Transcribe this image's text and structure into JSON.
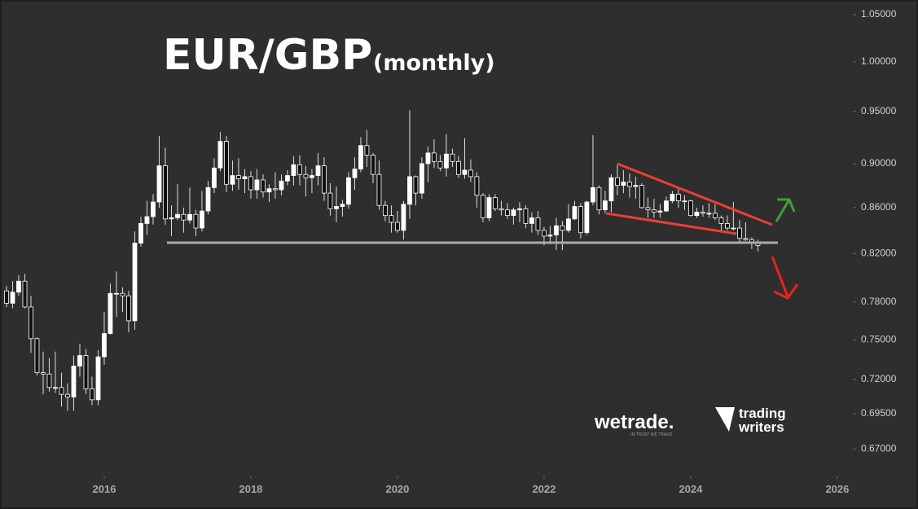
{
  "chart_data": {
    "type": "candlestick",
    "title": "EUR/GBP",
    "subtitle": "(monthly)",
    "log_scale": true,
    "up_color": "#ffffff",
    "down_color": "#111111",
    "xlim": [
      2014.578,
      2026.19
    ],
    "xticks": [
      2016,
      2018,
      2020,
      2022,
      2024,
      2026
    ],
    "ylim": [
      0.654,
      1.066
    ],
    "yticks": [
      {
        "value": 1.05,
        "label": "1.05000"
      },
      {
        "value": 1.0,
        "label": "1.00000"
      },
      {
        "value": 0.95,
        "label": "0.95000"
      },
      {
        "value": 0.9,
        "label": "0.90000"
      },
      {
        "value": 0.86,
        "label": "0.86000"
      },
      {
        "value": 0.82,
        "label": "0.82000"
      },
      {
        "value": 0.78,
        "label": "0.78000"
      },
      {
        "value": 0.75,
        "label": "0.75000"
      },
      {
        "value": 0.72,
        "label": "0.72000"
      },
      {
        "value": 0.695,
        "label": "0.69500"
      },
      {
        "value": 0.67,
        "label": "0.67000"
      }
    ],
    "x": [
      2014.667,
      2014.75,
      2014.833,
      2014.917,
      2015,
      2015.083,
      2015.167,
      2015.25,
      2015.333,
      2015.417,
      2015.5,
      2015.583,
      2015.667,
      2015.75,
      2015.833,
      2015.917,
      2016,
      2016.083,
      2016.167,
      2016.25,
      2016.333,
      2016.417,
      2016.5,
      2016.583,
      2016.667,
      2016.75,
      2016.833,
      2016.917,
      2017,
      2017.083,
      2017.167,
      2017.25,
      2017.333,
      2017.417,
      2017.5,
      2017.583,
      2017.667,
      2017.75,
      2017.833,
      2017.917,
      2018,
      2018.083,
      2018.167,
      2018.25,
      2018.333,
      2018.417,
      2018.5,
      2018.583,
      2018.667,
      2018.75,
      2018.833,
      2018.917,
      2019,
      2019.083,
      2019.167,
      2019.25,
      2019.333,
      2019.417,
      2019.5,
      2019.583,
      2019.667,
      2019.75,
      2019.833,
      2019.917,
      2020,
      2020.083,
      2020.167,
      2020.25,
      2020.333,
      2020.417,
      2020.5,
      2020.583,
      2020.667,
      2020.75,
      2020.833,
      2020.917,
      2021,
      2021.083,
      2021.167,
      2021.25,
      2021.333,
      2021.417,
      2021.5,
      2021.583,
      2021.667,
      2021.75,
      2021.833,
      2021.917,
      2022,
      2022.083,
      2022.167,
      2022.25,
      2022.333,
      2022.417,
      2022.5,
      2022.583,
      2022.667,
      2022.75,
      2022.833,
      2022.917,
      2023,
      2023.083,
      2023.167,
      2023.25,
      2023.333,
      2023.417,
      2023.5,
      2023.583,
      2023.667,
      2023.75,
      2023.833,
      2023.917,
      2024,
      2024.083,
      2024.167,
      2024.25,
      2024.333,
      2024.417,
      2024.5,
      2024.583,
      2024.667,
      2024.75,
      2024.833,
      2024.917
    ],
    "open": [
      0.789,
      0.779,
      0.788,
      0.797,
      0.776,
      0.751,
      0.725,
      0.724,
      0.714,
      0.714,
      0.709,
      0.707,
      0.73,
      0.738,
      0.713,
      0.705,
      0.737,
      0.755,
      0.787,
      0.787,
      0.785,
      0.765,
      0.829,
      0.846,
      0.852,
      0.865,
      0.898,
      0.85,
      0.851,
      0.854,
      0.849,
      0.854,
      0.842,
      0.857,
      0.878,
      0.896,
      0.921,
      0.881,
      0.889,
      0.886,
      0.888,
      0.876,
      0.885,
      0.874,
      0.877,
      0.876,
      0.884,
      0.889,
      0.899,
      0.89,
      0.887,
      0.889,
      0.898,
      0.873,
      0.859,
      0.861,
      0.863,
      0.887,
      0.895,
      0.917,
      0.908,
      0.89,
      0.862,
      0.853,
      0.847,
      0.84,
      0.863,
      0.888,
      0.873,
      0.9,
      0.91,
      0.902,
      0.896,
      0.909,
      0.902,
      0.89,
      0.894,
      0.888,
      0.871,
      0.851,
      0.869,
      0.859,
      0.858,
      0.853,
      0.858,
      0.859,
      0.846,
      0.851,
      0.84,
      0.835,
      0.836,
      0.844,
      0.84,
      0.85,
      0.861,
      0.838,
      0.865,
      0.878,
      0.858,
      0.866,
      0.887,
      0.88,
      0.883,
      0.879,
      0.88,
      0.86,
      0.858,
      0.856,
      0.857,
      0.866,
      0.872,
      0.866,
      0.866,
      0.853,
      0.856,
      0.855,
      0.855,
      0.851,
      0.846,
      0.842,
      0.842,
      0.833,
      0.832,
      0.829
    ],
    "high": [
      0.793,
      0.797,
      0.802,
      0.803,
      0.785,
      0.752,
      0.741,
      0.736,
      0.741,
      0.725,
      0.717,
      0.738,
      0.747,
      0.743,
      0.722,
      0.742,
      0.772,
      0.795,
      0.805,
      0.792,
      0.789,
      0.839,
      0.852,
      0.866,
      0.872,
      0.926,
      0.915,
      0.862,
      0.881,
      0.86,
      0.878,
      0.858,
      0.875,
      0.884,
      0.905,
      0.93,
      0.926,
      0.903,
      0.905,
      0.895,
      0.893,
      0.895,
      0.89,
      0.881,
      0.892,
      0.89,
      0.894,
      0.907,
      0.908,
      0.898,
      0.895,
      0.91,
      0.906,
      0.882,
      0.879,
      0.867,
      0.892,
      0.906,
      0.925,
      0.932,
      0.91,
      0.903,
      0.866,
      0.862,
      0.857,
      0.866,
      0.951,
      0.889,
      0.906,
      0.916,
      0.923,
      0.908,
      0.928,
      0.914,
      0.907,
      0.924,
      0.904,
      0.892,
      0.873,
      0.872,
      0.872,
      0.866,
      0.864,
      0.86,
      0.865,
      0.862,
      0.856,
      0.857,
      0.843,
      0.844,
      0.851,
      0.848,
      0.863,
      0.866,
      0.864,
      0.866,
      0.927,
      0.88,
      0.875,
      0.89,
      0.899,
      0.894,
      0.891,
      0.888,
      0.882,
      0.869,
      0.868,
      0.863,
      0.87,
      0.875,
      0.878,
      0.871,
      0.867,
      0.86,
      0.862,
      0.864,
      0.863,
      0.853,
      0.853,
      0.865,
      0.849,
      0.847,
      0.834,
      0.832
    ],
    "low": [
      0.776,
      0.775,
      0.785,
      0.775,
      0.74,
      0.723,
      0.709,
      0.711,
      0.71,
      0.7,
      0.697,
      0.697,
      0.722,
      0.709,
      0.701,
      0.701,
      0.731,
      0.754,
      0.768,
      0.772,
      0.756,
      0.758,
      0.826,
      0.836,
      0.845,
      0.86,
      0.845,
      0.835,
      0.849,
      0.838,
      0.846,
      0.835,
      0.839,
      0.854,
      0.873,
      0.893,
      0.874,
      0.875,
      0.876,
      0.873,
      0.868,
      0.868,
      0.869,
      0.865,
      0.868,
      0.871,
      0.88,
      0.88,
      0.88,
      0.87,
      0.873,
      0.88,
      0.866,
      0.853,
      0.847,
      0.852,
      0.859,
      0.876,
      0.892,
      0.897,
      0.882,
      0.858,
      0.848,
      0.838,
      0.838,
      0.832,
      0.85,
      0.862,
      0.868,
      0.883,
      0.896,
      0.893,
      0.888,
      0.897,
      0.887,
      0.886,
      0.883,
      0.86,
      0.847,
      0.848,
      0.857,
      0.853,
      0.85,
      0.845,
      0.847,
      0.842,
      0.838,
      0.836,
      0.827,
      0.828,
      0.823,
      0.823,
      0.838,
      0.849,
      0.833,
      0.836,
      0.862,
      0.854,
      0.855,
      0.856,
      0.871,
      0.873,
      0.869,
      0.868,
      0.859,
      0.851,
      0.851,
      0.851,
      0.856,
      0.864,
      0.86,
      0.858,
      0.852,
      0.851,
      0.852,
      0.851,
      0.849,
      0.84,
      0.84,
      0.84,
      0.83,
      0.831,
      0.824,
      0.822
    ],
    "close": [
      0.779,
      0.788,
      0.797,
      0.776,
      0.751,
      0.725,
      0.724,
      0.714,
      0.714,
      0.709,
      0.707,
      0.73,
      0.738,
      0.713,
      0.705,
      0.737,
      0.755,
      0.787,
      0.787,
      0.785,
      0.765,
      0.829,
      0.846,
      0.852,
      0.865,
      0.898,
      0.85,
      0.851,
      0.854,
      0.849,
      0.854,
      0.842,
      0.857,
      0.878,
      0.896,
      0.921,
      0.881,
      0.889,
      0.886,
      0.888,
      0.876,
      0.885,
      0.874,
      0.877,
      0.876,
      0.884,
      0.889,
      0.899,
      0.89,
      0.887,
      0.889,
      0.898,
      0.873,
      0.859,
      0.861,
      0.863,
      0.887,
      0.895,
      0.917,
      0.908,
      0.89,
      0.862,
      0.853,
      0.847,
      0.84,
      0.863,
      0.888,
      0.873,
      0.9,
      0.91,
      0.902,
      0.896,
      0.909,
      0.902,
      0.89,
      0.894,
      0.888,
      0.871,
      0.851,
      0.869,
      0.859,
      0.858,
      0.853,
      0.858,
      0.859,
      0.846,
      0.851,
      0.84,
      0.835,
      0.836,
      0.844,
      0.84,
      0.85,
      0.861,
      0.838,
      0.865,
      0.878,
      0.858,
      0.866,
      0.887,
      0.88,
      0.883,
      0.879,
      0.88,
      0.86,
      0.858,
      0.856,
      0.857,
      0.866,
      0.872,
      0.866,
      0.866,
      0.853,
      0.856,
      0.855,
      0.855,
      0.851,
      0.846,
      0.842,
      0.842,
      0.833,
      0.832,
      0.829,
      0.827
    ]
  },
  "logos": {
    "wetrade": "wetrade.",
    "tagline": "IN TRUST WE TRADE",
    "trading": "trading",
    "writers": "writers"
  }
}
